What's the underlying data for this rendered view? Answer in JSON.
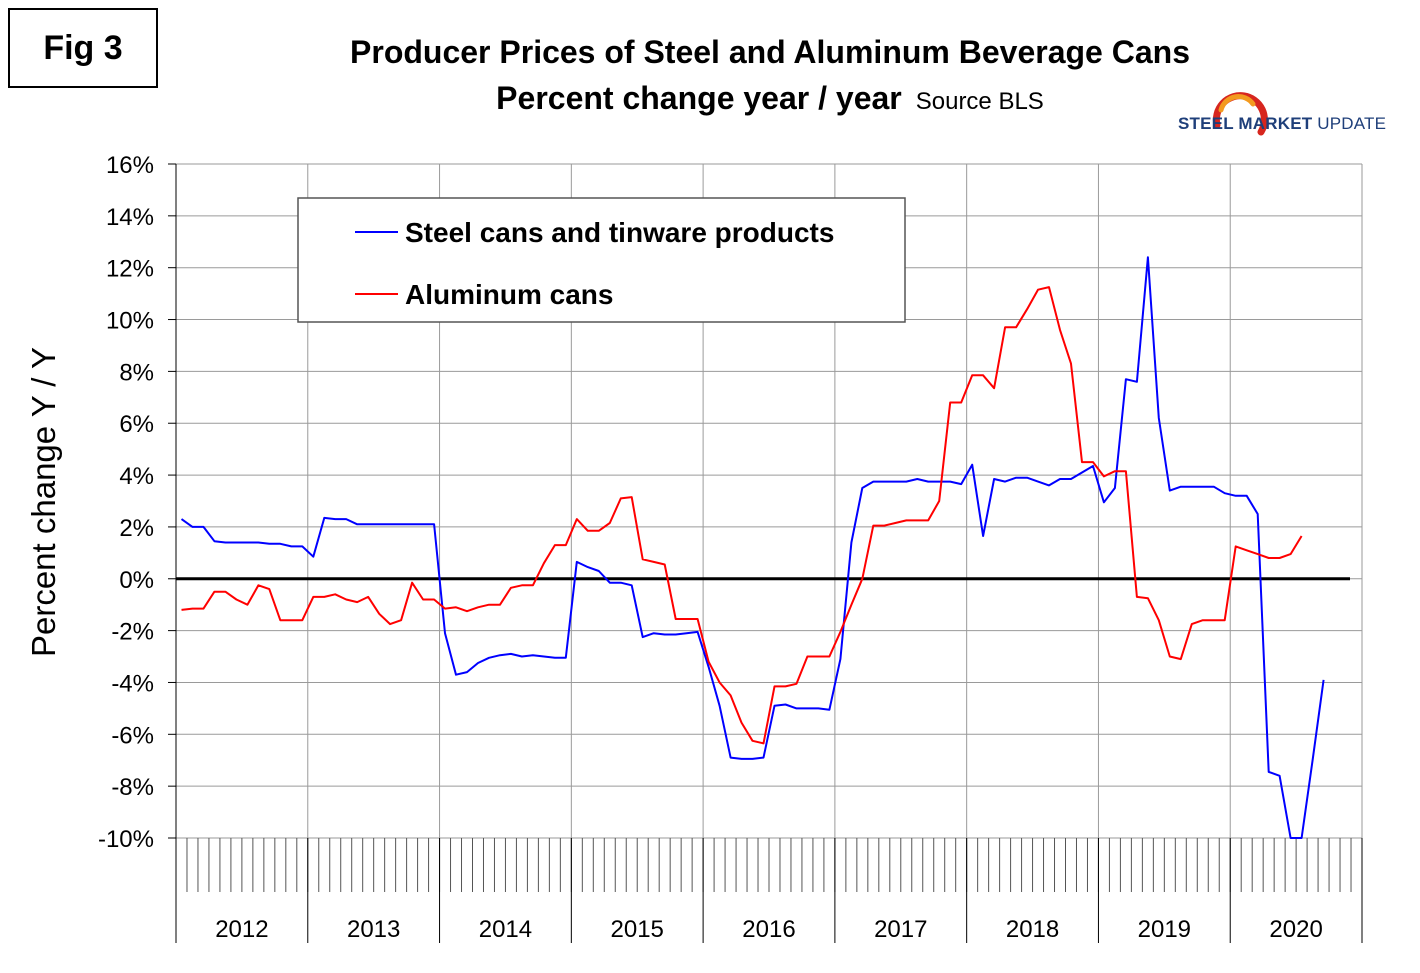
{
  "header": {
    "fig_label": "Fig 3",
    "title": "Producer Prices of Steel and Aluminum Beverage Cans",
    "subtitle": "Percent change year / year",
    "source": "Source BLS"
  },
  "logo": {
    "word1": "STEEL",
    "word2": "MARKET",
    "word3": "UPDATE",
    "colors": {
      "ring_red": "#d7261e",
      "ring_orange": "#f39a1f",
      "text": "#1f3f7a"
    }
  },
  "chart_data": {
    "type": "line",
    "title": "Producer Prices of Steel and Aluminum Beverage Cans",
    "subtitle": "Percent change year / year",
    "xlabel": "",
    "ylabel": "Percent change Y / Y",
    "ylim": [
      -10,
      16
    ],
    "yticks": [
      16,
      14,
      12,
      10,
      8,
      6,
      4,
      2,
      0,
      -2,
      -4,
      -6,
      -8,
      -10
    ],
    "ytick_labels": [
      "16%",
      "14%",
      "12%",
      "10%",
      "8%",
      "6%",
      "4%",
      "2%",
      "0%",
      "-2%",
      "-4%",
      "-6%",
      "-8%",
      "-10%"
    ],
    "x_start": "2012-01",
    "years": [
      "2012",
      "2013",
      "2014",
      "2015",
      "2016",
      "2017",
      "2018",
      "2019",
      "2020"
    ],
    "months_total": 108,
    "grid": true,
    "legend_position": "top-left",
    "series": [
      {
        "name": "Steel cans and tinware products",
        "color": "#0000ff",
        "values": [
          2.3,
          2.0,
          2.0,
          1.45,
          1.4,
          1.4,
          1.4,
          1.4,
          1.35,
          1.35,
          1.25,
          1.25,
          0.85,
          2.35,
          2.3,
          2.3,
          2.1,
          2.1,
          2.1,
          2.1,
          2.1,
          2.1,
          2.1,
          2.1,
          -2.1,
          -3.7,
          -3.6,
          -3.25,
          -3.05,
          -2.95,
          -2.9,
          -3.0,
          -2.95,
          -3.0,
          -3.05,
          -3.05,
          0.65,
          0.45,
          0.3,
          -0.15,
          -0.15,
          -0.25,
          -2.25,
          -2.1,
          -2.15,
          -2.15,
          -2.1,
          -2.05,
          -3.4,
          -4.9,
          -6.9,
          -6.95,
          -6.95,
          -6.9,
          -4.9,
          -4.85,
          -5.0,
          -5.0,
          -5.0,
          -5.05,
          -3.1,
          1.4,
          3.5,
          3.75,
          3.75,
          3.75,
          3.75,
          3.85,
          3.75,
          3.75,
          3.75,
          3.65,
          4.4,
          1.65,
          3.85,
          3.75,
          3.9,
          3.9,
          3.75,
          3.6,
          3.85,
          3.85,
          4.1,
          4.35,
          2.95,
          3.5,
          7.7,
          7.6,
          12.4,
          6.2,
          3.4,
          3.55,
          3.55,
          3.55,
          3.55,
          3.3,
          3.2,
          3.2,
          2.5,
          -7.45,
          -7.6,
          -10.0,
          -10.0,
          -7.0,
          -3.9
        ]
      },
      {
        "name": "Aluminum cans",
        "color": "#ff0000",
        "values": [
          -1.2,
          -1.15,
          -1.15,
          -0.5,
          -0.5,
          -0.8,
          -1.0,
          -0.25,
          -0.4,
          -1.6,
          -1.6,
          -1.6,
          -0.7,
          -0.7,
          -0.6,
          -0.8,
          -0.9,
          -0.7,
          -1.35,
          -1.75,
          -1.6,
          -0.15,
          -0.8,
          -0.8,
          -1.15,
          -1.1,
          -1.25,
          -1.1,
          -1.0,
          -1.0,
          -0.35,
          -0.25,
          -0.25,
          0.6,
          1.3,
          1.3,
          2.3,
          1.85,
          1.85,
          2.15,
          3.1,
          3.15,
          0.75,
          0.65,
          0.55,
          -1.55,
          -1.55,
          -1.55,
          -3.2,
          -4.0,
          -4.5,
          -5.55,
          -6.25,
          -6.35,
          -4.15,
          -4.15,
          -4.05,
          -3.0,
          -3.0,
          -3.0,
          -2.05,
          -1.0,
          0.0,
          2.05,
          2.05,
          2.15,
          2.25,
          2.25,
          2.25,
          3.0,
          6.8,
          6.8,
          7.85,
          7.85,
          7.35,
          9.7,
          9.7,
          10.4,
          11.15,
          11.25,
          9.6,
          8.3,
          4.5,
          4.5,
          3.95,
          4.15,
          4.15,
          -0.7,
          -0.75,
          -1.6,
          -3.0,
          -3.1,
          -1.75,
          -1.6,
          -1.6,
          -1.6,
          1.25,
          1.1,
          0.95,
          0.8,
          0.8,
          0.95,
          1.65
        ]
      }
    ]
  }
}
